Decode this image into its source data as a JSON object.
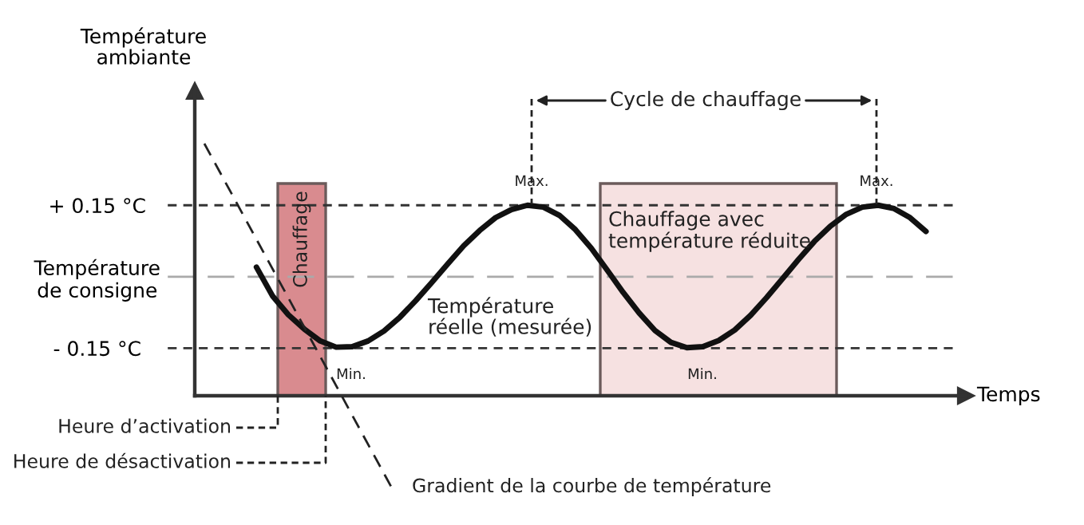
{
  "chart_data": {
    "type": "line",
    "xlabel": "Temps",
    "ylabel": "Température\nambiante",
    "categories": [
      null,
      null,
      null,
      null,
      null,
      null,
      null,
      null,
      null,
      null,
      null,
      null,
      null,
      null,
      null,
      null,
      null,
      null,
      null,
      null,
      null,
      null,
      null,
      null,
      null,
      null,
      null,
      null,
      null,
      null,
      null,
      null,
      null,
      null,
      null,
      null,
      null,
      null,
      null,
      null,
      null,
      null,
      null
    ],
    "series": [
      {
        "color": "#111111",
        "values": [
          0.02,
          -0.04,
          -0.08,
          -0.11,
          -0.135,
          -0.148,
          -0.147,
          -0.135,
          -0.114,
          -0.085,
          -0.05,
          -0.012,
          0.027,
          0.065,
          0.097,
          0.124,
          0.141,
          0.15,
          0.146,
          0.129,
          0.099,
          0.06,
          0.014,
          -0.033,
          -0.076,
          -0.113,
          -0.138,
          -0.149,
          -0.147,
          -0.134,
          -0.112,
          -0.081,
          -0.044,
          -0.004,
          0.036,
          0.074,
          0.106,
          0.131,
          0.146,
          0.15,
          0.143,
          0.124,
          0.095
        ]
      }
    ],
    "ylim": [
      -0.25,
      0.39
    ],
    "yticks": [
      {
        "value": 0.15,
        "label": "+ 0.15 °C"
      },
      {
        "value": 0,
        "label": "Température\nde consigne"
      },
      {
        "value": -0.15,
        "label": "- 0.15 °C"
      }
    ],
    "tick_labels": "y",
    "ref_lines": [
      {
        "axis": "y",
        "value": 0.15,
        "color": "#333333",
        "line_style": "dashed"
      },
      {
        "axis": "y",
        "value": 0,
        "color": "#aaaaaa",
        "line_style": "dashed"
      },
      {
        "axis": "y",
        "value": -0.15,
        "color": "#333333",
        "line_style": "dashed"
      }
    ],
    "annotations": [
      "Température\nréelle (mesurée)",
      "Min.",
      "Max.",
      "Min.",
      "Max.",
      "Cycle de chauffage",
      "Heure d’activation",
      "Heure de désactivation",
      "Gradient de la courbe de température",
      "Chauffage",
      "Chauffage avec\ntempérature réduite"
    ]
  }
}
